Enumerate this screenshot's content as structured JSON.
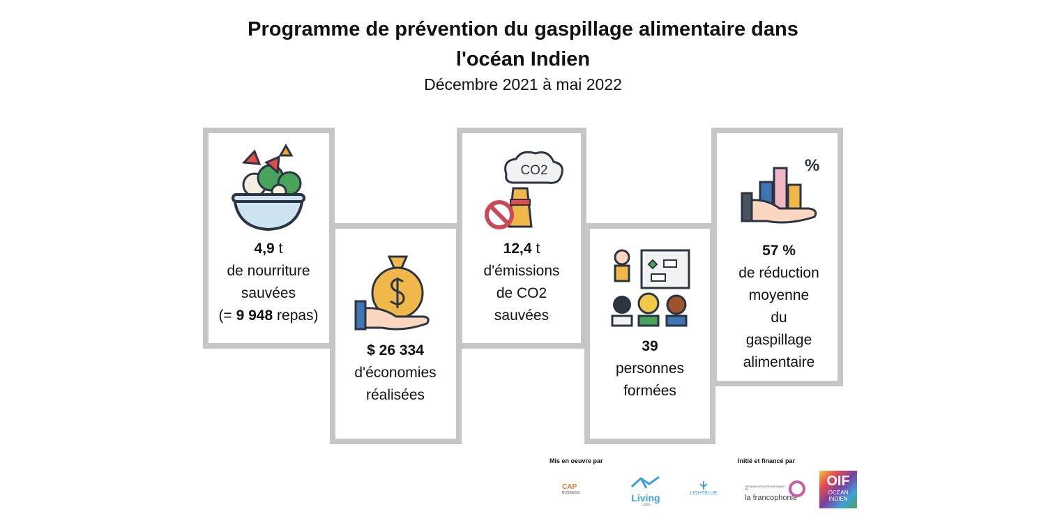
{
  "header": {
    "title_lines": [
      "Programme de prévention du gaspillage alimentaire dans",
      "l'océan Indien"
    ],
    "subtitle": "Décembre 2021 à mai 2022"
  },
  "cards": [
    {
      "lines": [
        [
          {
            "text": "4,9",
            "bold": true
          },
          {
            "text": "t"
          }
        ],
        [
          {
            "text": "de nourriture"
          }
        ],
        [
          {
            "text": "sauvées"
          }
        ],
        [
          {
            "text": "(="
          },
          {
            "text": "9 948",
            "bold": true
          },
          {
            "text": "repas)"
          }
        ]
      ]
    },
    {
      "lines": [
        [
          {
            "text": "$ 26 334",
            "bold": true
          }
        ],
        [
          {
            "text": "d'économies"
          }
        ],
        [
          {
            "text": "réalisées"
          }
        ]
      ]
    },
    {
      "lines": [
        [
          {
            "text": "12,4",
            "bold": true
          },
          {
            "text": "t"
          }
        ],
        [
          {
            "text": "d'émissions"
          }
        ],
        [
          {
            "text": "de CO2"
          }
        ],
        [
          {
            "text": "sauvées"
          }
        ]
      ]
    },
    {
      "lines": [
        [
          {
            "text": "39",
            "bold": true
          }
        ],
        [
          {
            "text": "personnes"
          }
        ],
        [
          {
            "text": "formées"
          }
        ]
      ]
    },
    {
      "lines": [
        [
          {
            "text": "57 %",
            "bold": true
          }
        ],
        [
          {
            "text": "de réduction"
          }
        ],
        [
          {
            "text": "moyenne"
          }
        ],
        [
          {
            "text": "du"
          }
        ],
        [
          {
            "text": "gaspillage"
          }
        ],
        [
          {
            "text": "alimentaire"
          }
        ]
      ]
    }
  ],
  "icon_texts": {
    "co2": "CO2"
  },
  "footer": {
    "implemented_by": "Mis en oeuvre par",
    "funded_by": "Initié et financé par",
    "logos": {
      "cap": "CAP",
      "cap_sub": "BUSINESS",
      "living": "Living",
      "living_sub": "Labs",
      "lightblue": "LIGHTBLUE",
      "oif_org": "ORGANISATION INTERNATIONALE DE",
      "francophonie": "la francophonie",
      "oif": "OIF",
      "ocean": "OCÉAN INDIEN"
    }
  }
}
